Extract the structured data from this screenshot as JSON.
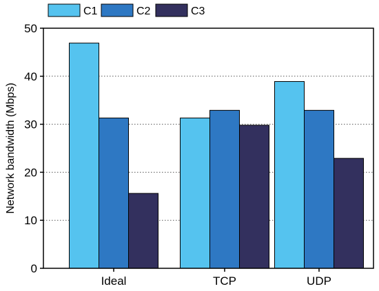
{
  "chart_data": {
    "type": "bar",
    "categories": [
      "Ideal",
      "TCP",
      "UDP"
    ],
    "series": [
      {
        "name": "C1",
        "values": [
          46.9,
          31.3,
          38.9
        ]
      },
      {
        "name": "C2",
        "values": [
          31.3,
          32.9,
          32.9
        ]
      },
      {
        "name": "C3",
        "values": [
          15.6,
          29.8,
          22.9
        ]
      }
    ],
    "xlabel": "",
    "ylabel": "Network bandwidth (Mbps)",
    "ylim": [
      0,
      50
    ],
    "yticks": [
      "0",
      "10",
      "20",
      "30",
      "40",
      "50"
    ],
    "grid": "horizontal dotted",
    "legend_position": "top",
    "colors": [
      "#55c3ef",
      "#2e78c3",
      "#33305e"
    ]
  }
}
